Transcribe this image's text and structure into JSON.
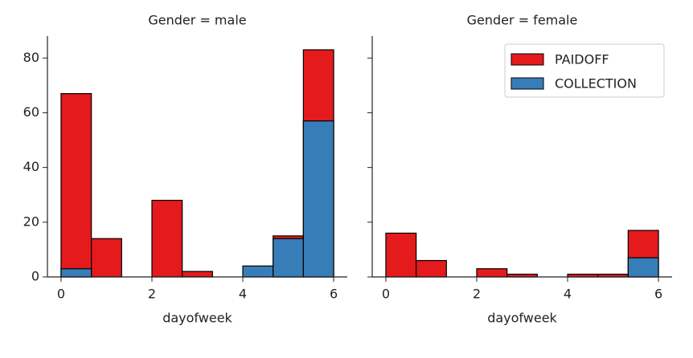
{
  "chart_data": [
    {
      "type": "histogram",
      "title": "Gender = male",
      "x_label": "dayofweek",
      "bins": [
        0,
        0.667,
        1.333,
        2,
        2.667,
        3.333,
        4,
        4.667,
        5.333,
        6
      ],
      "series": [
        {
          "name": "PAIDOFF",
          "color": "#e41a1c",
          "values": [
            67,
            14,
            0,
            28,
            2,
            0,
            0,
            15,
            83
          ]
        },
        {
          "name": "COLLECTION",
          "color": "#377eb8",
          "values": [
            3,
            0,
            0,
            0,
            0,
            0,
            4,
            14,
            57
          ]
        }
      ],
      "xlim": [
        -0.3,
        6.3
      ],
      "xticks": [
        0,
        2,
        4,
        6
      ],
      "ylim": [
        0,
        88
      ],
      "yticks": [
        0,
        20,
        40,
        60,
        80
      ]
    },
    {
      "type": "histogram",
      "title": "Gender = female",
      "x_label": "dayofweek",
      "bins": [
        0,
        0.667,
        1.333,
        2,
        2.667,
        3.333,
        4,
        4.667,
        5.333,
        6
      ],
      "series": [
        {
          "name": "PAIDOFF",
          "color": "#e41a1c",
          "values": [
            16,
            6,
            0,
            3,
            1,
            0,
            1,
            1,
            17
          ]
        },
        {
          "name": "COLLECTION",
          "color": "#377eb8",
          "values": [
            0,
            0,
            0,
            0,
            0,
            0,
            0,
            0,
            7
          ]
        }
      ],
      "xlim": [
        -0.3,
        6.3
      ],
      "xticks": [
        0,
        2,
        4,
        6
      ],
      "ylim": [
        0,
        88
      ],
      "legend": "upper right"
    }
  ]
}
